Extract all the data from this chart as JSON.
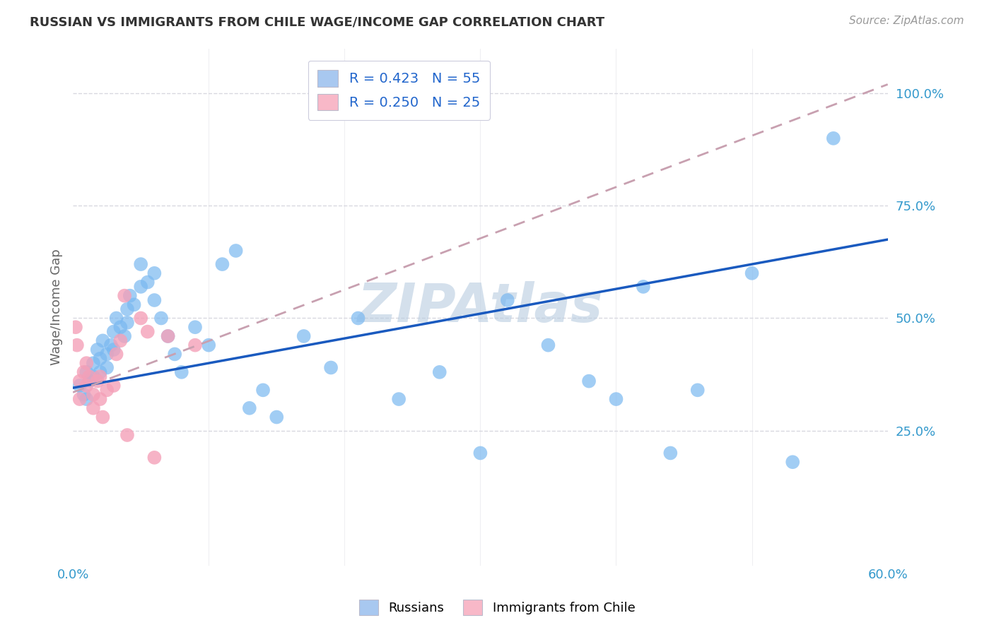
{
  "title": "RUSSIAN VS IMMIGRANTS FROM CHILE WAGE/INCOME GAP CORRELATION CHART",
  "source": "Source: ZipAtlas.com",
  "ylabel": "Wage/Income Gap",
  "legend_label1": "R = 0.423   N = 55",
  "legend_label2": "R = 0.250   N = 25",
  "legend_color1": "#a8c8f0",
  "legend_color2": "#f8b8c8",
  "blue_color": "#7ab8f0",
  "pink_color": "#f4a0b8",
  "blue_line_color": "#1a5abf",
  "pink_line_color": "#c8a0b0",
  "grid_color": "#d8d8e0",
  "watermark_color": "#b8cce0",
  "xlim": [
    0.0,
    0.6
  ],
  "ylim": [
    -0.05,
    1.1
  ],
  "blue_x": [
    0.005,
    0.008,
    0.01,
    0.01,
    0.012,
    0.015,
    0.015,
    0.018,
    0.02,
    0.02,
    0.022,
    0.025,
    0.025,
    0.028,
    0.03,
    0.03,
    0.032,
    0.035,
    0.038,
    0.04,
    0.04,
    0.042,
    0.045,
    0.05,
    0.05,
    0.055,
    0.06,
    0.06,
    0.065,
    0.07,
    0.075,
    0.08,
    0.09,
    0.1,
    0.11,
    0.12,
    0.13,
    0.14,
    0.15,
    0.17,
    0.19,
    0.21,
    0.24,
    0.27,
    0.3,
    0.32,
    0.35,
    0.38,
    0.4,
    0.42,
    0.44,
    0.46,
    0.5,
    0.53,
    0.56
  ],
  "blue_y": [
    0.35,
    0.33,
    0.38,
    0.32,
    0.36,
    0.4,
    0.37,
    0.43,
    0.41,
    0.38,
    0.45,
    0.42,
    0.39,
    0.44,
    0.47,
    0.43,
    0.5,
    0.48,
    0.46,
    0.52,
    0.49,
    0.55,
    0.53,
    0.57,
    0.62,
    0.58,
    0.6,
    0.54,
    0.5,
    0.46,
    0.42,
    0.38,
    0.48,
    0.44,
    0.62,
    0.65,
    0.3,
    0.34,
    0.28,
    0.46,
    0.39,
    0.5,
    0.32,
    0.38,
    0.2,
    0.54,
    0.44,
    0.36,
    0.32,
    0.57,
    0.2,
    0.34,
    0.6,
    0.18,
    0.9
  ],
  "pink_x": [
    0.002,
    0.003,
    0.005,
    0.005,
    0.008,
    0.01,
    0.01,
    0.012,
    0.015,
    0.015,
    0.018,
    0.02,
    0.02,
    0.022,
    0.025,
    0.03,
    0.032,
    0.035,
    0.038,
    0.04,
    0.05,
    0.055,
    0.06,
    0.07,
    0.09
  ],
  "pink_y": [
    0.48,
    0.44,
    0.36,
    0.32,
    0.38,
    0.4,
    0.35,
    0.37,
    0.33,
    0.3,
    0.36,
    0.32,
    0.37,
    0.28,
    0.34,
    0.35,
    0.42,
    0.45,
    0.55,
    0.24,
    0.5,
    0.47,
    0.19,
    0.46,
    0.44
  ],
  "blue_line_x0": 0.0,
  "blue_line_x1": 0.6,
  "blue_line_y0": 0.345,
  "blue_line_y1": 0.675,
  "pink_line_x0": 0.0,
  "pink_line_x1": 0.6,
  "pink_line_y0": 0.335,
  "pink_line_y1": 1.02
}
